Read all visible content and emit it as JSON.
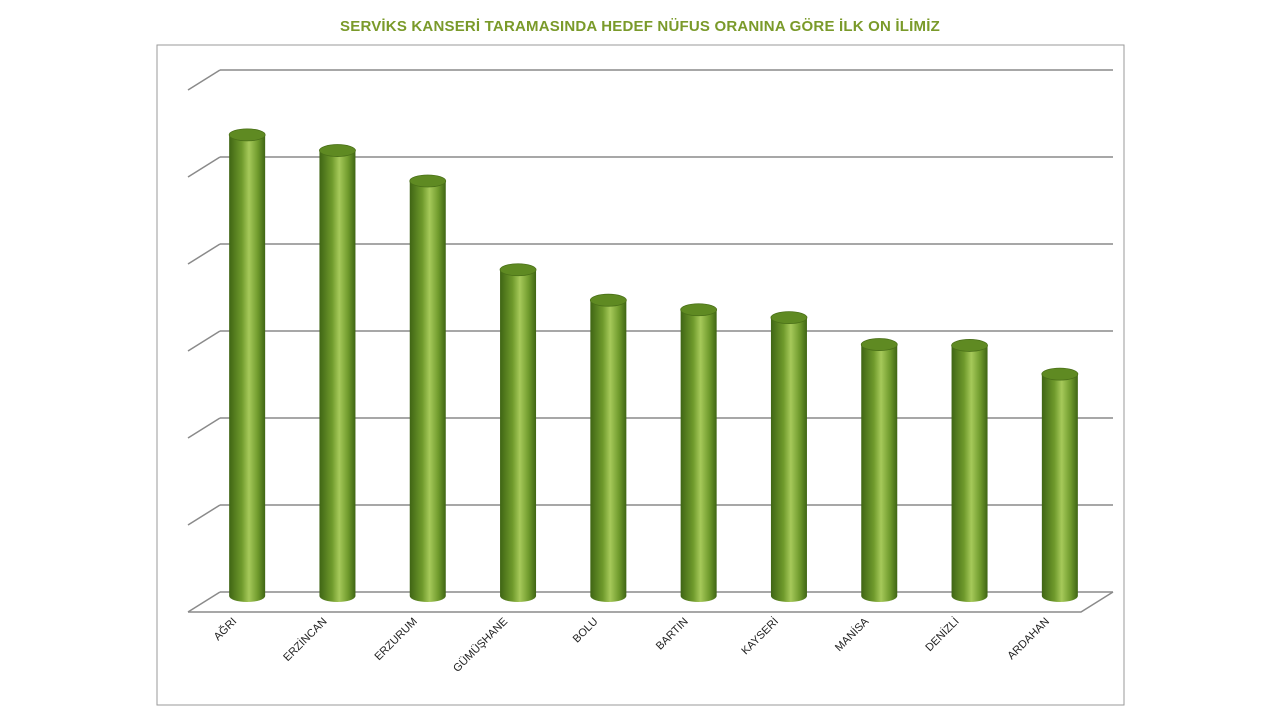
{
  "chart_data": {
    "type": "bar",
    "title": "SERVİKS KANSERİ TARAMASINDA HEDEF NÜFUS ORANINA GÖRE İLK ON İLİMİZ",
    "categories": [
      "AĞRI",
      "ERZİNCAN",
      "ERZURUM",
      "GÜMÜŞHANE",
      "BOLU",
      "BARTIN",
      "KAYSERİ",
      "MANİSA",
      "DENİZLİ",
      "ARDAHAN"
    ],
    "series": [
      {
        "values": [
          5.3,
          5.12,
          4.77,
          3.75,
          3.4,
          3.29,
          3.2,
          2.89,
          2.88,
          2.55
        ]
      }
    ],
    "ylim": [
      0,
      6
    ],
    "gridlines": 6,
    "grid": true,
    "legend": "none",
    "bar_color": "#6f9a2c",
    "bar_highlight": "#a6c95a",
    "bar_shadow": "#3f6514",
    "title_color": "#7a9a2a"
  }
}
